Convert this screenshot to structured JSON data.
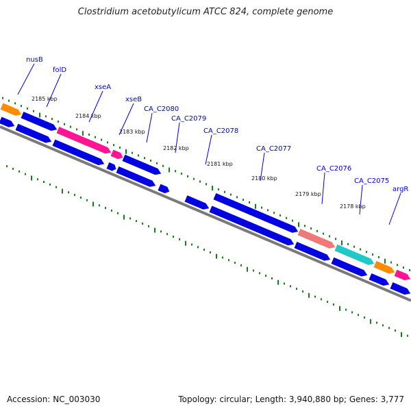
{
  "title": "Clostridium acetobutylicum ATCC 824, complete genome",
  "footer": {
    "accession": "Accession: NC_003030",
    "topology": "Topology: circular; Length: 3,940,880 bp; Genes: 3,777"
  },
  "colors": {
    "gene_blue": "#0000e0",
    "backbone": "#7a7a7a",
    "tick_green": "#1a7a1a",
    "label_blue": "#0000cc",
    "orange": "#ff8c00",
    "pink": "#ff1493",
    "salmon": "#f07878",
    "cyan": "#20c8c8"
  },
  "scale_labels": [
    "2185 kbp",
    "2184 kbp",
    "2183 kbp",
    "2182 kbp",
    "2181 kbp",
    "2180 kbp",
    "2179 kbp",
    "2178 kbp"
  ],
  "gene_labels": [
    "nusB",
    "folD",
    "xseA",
    "xseB",
    "CA_C2080",
    "CA_C2079",
    "CA_C2078",
    "CA_C2077",
    "CA_C2076",
    "CA_C2075",
    "argR"
  ]
}
